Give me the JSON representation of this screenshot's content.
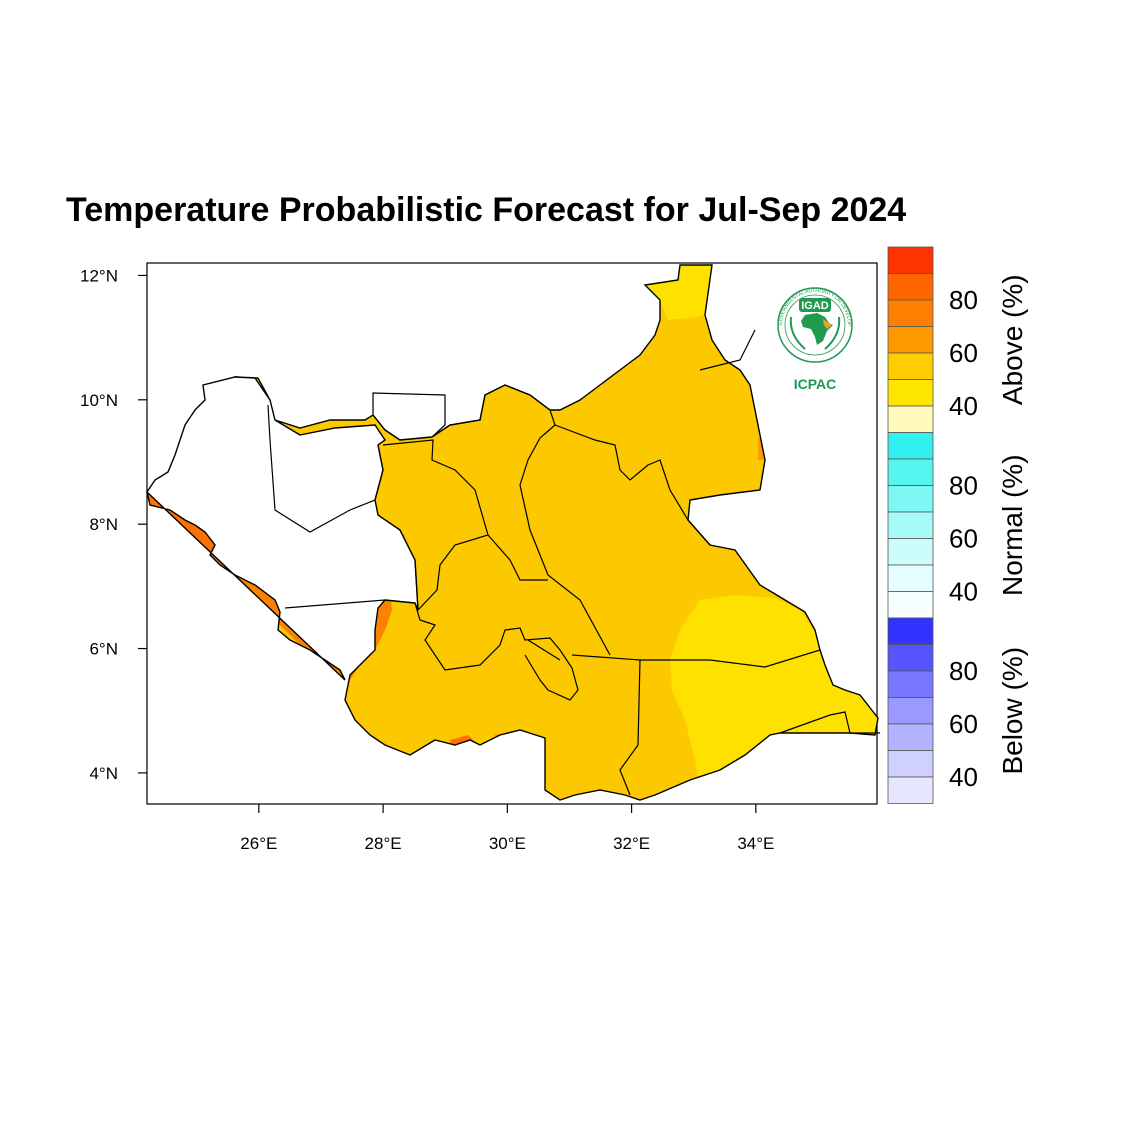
{
  "title": "Temperature Probabilistic Forecast for Jul-Sep 2024",
  "map": {
    "lon_ticks": [
      "26°E",
      "28°E",
      "30°E",
      "32°E",
      "34°E"
    ],
    "lat_ticks": [
      "4°N",
      "6°N",
      "8°N",
      "10°N",
      "12°N"
    ],
    "lon_range": [
      24.2,
      35.95
    ],
    "lat_range": [
      3.5,
      12.2
    ]
  },
  "colorbar": {
    "sections": [
      {
        "name": "Above (%)",
        "labels": [
          "80",
          "60",
          "40"
        ],
        "colors": [
          "#ff3300",
          "#ff6600",
          "#ff8000",
          "#ff9900",
          "#ffcc00",
          "#ffe600",
          "#fff9bb"
        ]
      },
      {
        "name": "Normal (%)",
        "labels": [
          "80",
          "60",
          "40"
        ],
        "colors": [
          "#33f0f0",
          "#55f5f0",
          "#7ff8f5",
          "#a6fbf8",
          "#cdfdfb",
          "#e6fefd",
          "#f5ffff"
        ]
      },
      {
        "name": "Below (%)",
        "labels": [
          "80",
          "60",
          "40"
        ],
        "colors": [
          "#3333ff",
          "#5555ff",
          "#7777ff",
          "#9999ff",
          "#b3b3ff",
          "#d0d0ff",
          "#e6e6ff"
        ]
      }
    ]
  },
  "logo": {
    "name": "IGAD",
    "sub": "ICPAC",
    "ring_text": "INTERGOVERNMENTAL AUTHORITY ON DEVELOPMENT"
  },
  "colors": {
    "fill_yellow": "#fcc800",
    "fill_bright_yellow": "#ffe100",
    "fill_orange": "#fa8200",
    "fill_dark_orange": "#ff7000",
    "logo_green": "#1f9a4f"
  }
}
